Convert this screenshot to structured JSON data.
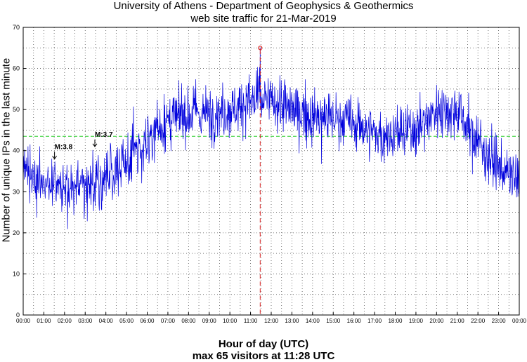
{
  "chart_data": {
    "type": "line",
    "title": "University of Athens - Department of Geophysics & Geothermics",
    "subtitle": "web site traffic for 21-Mar-2019",
    "xlabel": "Hour of day (UTC)",
    "xlabel2": "max 65 visitors at 11:28 UTC",
    "ylabel": "Number of unique IPs in the last minute",
    "ylim": [
      0,
      70
    ],
    "yticks": [
      "0",
      "10",
      "20",
      "30",
      "40",
      "50",
      "60",
      "70"
    ],
    "xticks": [
      "00:00",
      "01:00",
      "02:00",
      "03:00",
      "04:00",
      "05:00",
      "06:00",
      "07:00",
      "08:00",
      "09:00",
      "10:00",
      "11:00",
      "12:00",
      "13:00",
      "14:00",
      "15:00",
      "16:00",
      "17:00",
      "18:00",
      "19:00",
      "20:00",
      "21:00",
      "22:00",
      "23:00",
      "00:00"
    ],
    "grid": true,
    "mean_line": 43.5,
    "max": {
      "time": "11:28",
      "value": 65
    },
    "hourly_trend": [
      35,
      32,
      31,
      32,
      33,
      37,
      43,
      47,
      49,
      49,
      50,
      52,
      52,
      50,
      48,
      48,
      47,
      44,
      44,
      45,
      50,
      50,
      42,
      36,
      32
    ],
    "annotations": [
      {
        "label": "M:3.8",
        "time": "01:31",
        "value": 38
      },
      {
        "label": "M:3.7",
        "time": "03:28",
        "value": 41
      }
    ],
    "colors": {
      "series": "#0000dd",
      "mean": "#22cc22",
      "max_marker": "#dd2222",
      "grid": "#555555"
    }
  }
}
